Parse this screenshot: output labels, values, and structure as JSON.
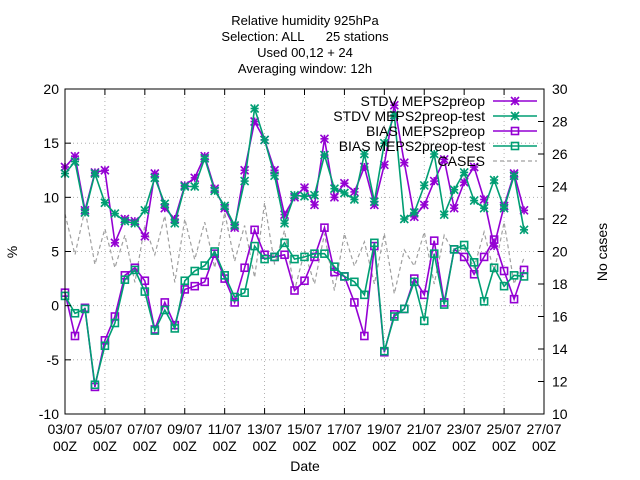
{
  "chart_data": {
    "type": "line",
    "title_lines": [
      "Relative humidity 925hPa",
      "Selection: ALL      25 stations",
      "Used 00,12 + 24",
      "Averaging window: 12h"
    ],
    "xlabel": "Date",
    "ylabel": "%",
    "y2label": "No cases",
    "ylim": [
      -10,
      20
    ],
    "y2lim": [
      10,
      30
    ],
    "yticks": [
      -10,
      -5,
      0,
      5,
      10,
      15,
      20
    ],
    "y2ticks": [
      10,
      12,
      14,
      16,
      18,
      20,
      22,
      24,
      26,
      28,
      30
    ],
    "xlim": [
      0,
      48
    ],
    "xticks": [
      {
        "x": 0,
        "line1": "03/07",
        "line2": "00Z"
      },
      {
        "x": 4,
        "line1": "05/07",
        "line2": "00Z"
      },
      {
        "x": 8,
        "line1": "07/07",
        "line2": "00Z"
      },
      {
        "x": 12,
        "line1": "09/07",
        "line2": "00Z"
      },
      {
        "x": 16,
        "line1": "11/07",
        "line2": "00Z"
      },
      {
        "x": 20,
        "line1": "13/07",
        "line2": "00Z"
      },
      {
        "x": 24,
        "line1": "15/07",
        "line2": "00Z"
      },
      {
        "x": 28,
        "line1": "17/07",
        "line2": "00Z"
      },
      {
        "x": 32,
        "line1": "19/07",
        "line2": "00Z"
      },
      {
        "x": 36,
        "line1": "21/07",
        "line2": "00Z"
      },
      {
        "x": 40,
        "line1": "23/07",
        "line2": "00Z"
      },
      {
        "x": 44,
        "line1": "25/07",
        "line2": "00Z"
      },
      {
        "x": 48,
        "line1": "27/07",
        "line2": "00Z"
      }
    ],
    "grid": true,
    "legend_position": "top-right",
    "x": [
      0,
      1,
      2,
      3,
      4,
      5,
      6,
      7,
      8,
      9,
      10,
      11,
      12,
      13,
      14,
      15,
      16,
      17,
      18,
      19,
      20,
      21,
      22,
      23,
      24,
      25,
      26,
      27,
      28,
      29,
      30,
      31,
      32,
      33,
      34,
      35,
      36,
      37,
      38,
      39,
      40,
      41,
      42,
      43,
      44,
      45,
      46
    ],
    "series": [
      {
        "name": "STDV MEPS2preop",
        "color": "#9400d3",
        "axis": "y1",
        "marker": "star",
        "values": [
          12.8,
          13.8,
          8.8,
          12.3,
          12.5,
          5.8,
          8.0,
          7.8,
          6.4,
          12.2,
          9.0,
          8.0,
          11.1,
          11.8,
          13.8,
          10.8,
          9.0,
          7.2,
          12.5,
          17.0,
          15.3,
          12.5,
          8.4,
          10.0,
          10.9,
          9.3,
          15.4,
          10.0,
          11.3,
          10.5,
          12.8,
          9.3,
          13.0,
          18.5,
          13.2,
          8.2,
          9.3,
          11.5,
          13.5,
          9.0,
          11.4,
          12.8,
          9.8,
          5.5,
          9.2,
          12.2,
          8.8
        ]
      },
      {
        "name": "STDV MEPS2preop-test",
        "color": "#009e73",
        "axis": "y1",
        "marker": "star",
        "values": [
          12.2,
          13.3,
          8.6,
          12.2,
          9.5,
          8.5,
          7.8,
          7.6,
          8.8,
          11.8,
          9.4,
          7.6,
          11.0,
          11.0,
          13.6,
          10.6,
          9.2,
          7.4,
          11.5,
          18.2,
          15.3,
          12.0,
          7.6,
          10.2,
          10.1,
          10.2,
          13.9,
          10.8,
          10.4,
          9.8,
          14.0,
          9.6,
          15.0,
          17.6,
          8.0,
          8.6,
          11.1,
          14.0,
          8.4,
          10.7,
          12.3,
          9.7,
          9.0,
          11.6,
          9.0,
          12.0,
          7.0
        ]
      },
      {
        "name": "BIAS MEPS2preop",
        "color": "#9400d3",
        "axis": "y1",
        "marker": "square",
        "values": [
          1.2,
          -2.8,
          -0.2,
          -7.5,
          -3.2,
          -1.0,
          2.8,
          3.5,
          2.3,
          -2.2,
          0.3,
          -1.8,
          1.5,
          1.8,
          2.2,
          4.8,
          2.5,
          0.3,
          3.5,
          7.0,
          4.7,
          4.5,
          4.7,
          1.4,
          2.3,
          4.5,
          7.2,
          3.1,
          2.7,
          0.3,
          -2.8,
          5.5,
          -4.3,
          -0.8,
          -0.3,
          2.5,
          1.0,
          6.0,
          0.3,
          5.2,
          4.5,
          2.9,
          4.5,
          6.1,
          3.2,
          0.6,
          3.3
        ]
      },
      {
        "name": "BIAS MEPS2preop-test",
        "color": "#009e73",
        "axis": "y1",
        "marker": "square",
        "values": [
          0.9,
          -0.7,
          -0.3,
          -7.3,
          -3.7,
          -1.6,
          2.4,
          3.3,
          1.3,
          -2.3,
          -0.4,
          -2.1,
          2.3,
          3.2,
          3.7,
          5.0,
          2.8,
          0.8,
          1.2,
          5.5,
          4.3,
          4.5,
          5.8,
          4.3,
          4.5,
          4.8,
          4.8,
          3.6,
          2.7,
          2.2,
          1.0,
          5.8,
          -4.2,
          -1.0,
          -0.3,
          2.2,
          -1.4,
          4.8,
          0.1,
          5.2,
          5.6,
          4.0,
          0.4,
          3.5,
          1.8,
          2.8,
          2.7
        ]
      },
      {
        "name": "CASES",
        "color": "#a0a0a0",
        "axis": "y2",
        "marker": "none",
        "dashed": true,
        "values": [
          22.3,
          19.8,
          22.6,
          19.2,
          21.4,
          19.0,
          21.0,
          18.1,
          21.6,
          19.8,
          22.2,
          18.1,
          22.0,
          19.5,
          21.8,
          19.0,
          22.4,
          19.4,
          21.6,
          18.4,
          23.0,
          19.2,
          21.3,
          17.6,
          20.0,
          18.0,
          21.1,
          17.6,
          21.1,
          19.1,
          20.6,
          18.0,
          21.1,
          17.4,
          20.1,
          19.1,
          21.2,
          18.0,
          21.0,
          19.9,
          20.2,
          19.0,
          21.2,
          18.7,
          21.8,
          18.0,
          19.6
        ]
      }
    ]
  }
}
